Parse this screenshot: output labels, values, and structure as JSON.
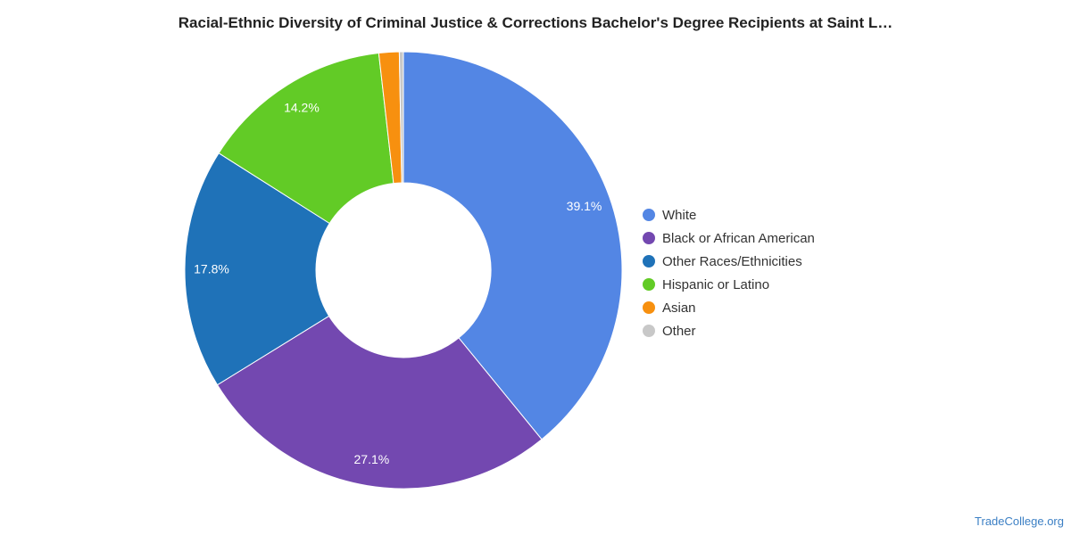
{
  "chart_data": {
    "type": "pie",
    "title": "Racial-Ethnic Diversity of Criminal Justice & Corrections Bachelor's Degree Recipients at Saint L…",
    "legend_position": "right",
    "slices": [
      {
        "name": "White",
        "value": 39.1,
        "label": "39.1%",
        "color": "#5386e4"
      },
      {
        "name": "Black or African American",
        "value": 27.1,
        "label": "27.1%",
        "color": "#7348b0"
      },
      {
        "name": "Other Races/Ethnicities",
        "value": 17.8,
        "label": "17.8%",
        "color": "#1f72b8"
      },
      {
        "name": "Hispanic or Latino",
        "value": 14.2,
        "label": "14.2%",
        "color": "#62cb26"
      },
      {
        "name": "Asian",
        "value": 1.5,
        "label": "",
        "color": "#f7900f"
      },
      {
        "name": "Other",
        "value": 0.3,
        "label": "",
        "color": "#c8c8c8"
      }
    ]
  },
  "source": "TradeCollege.org"
}
